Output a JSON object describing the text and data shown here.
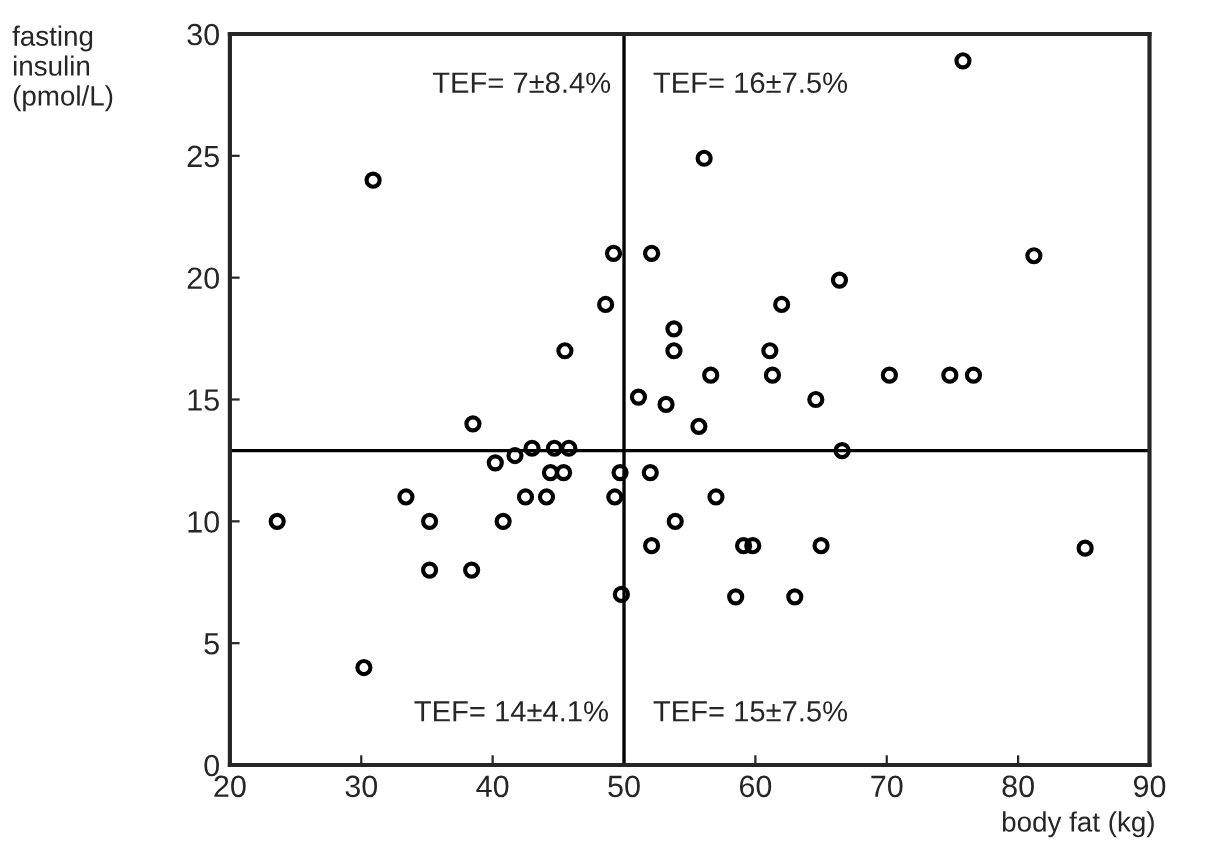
{
  "chart_data": {
    "type": "scatter",
    "ylabel": "fasting\ninsulin\n(pmol/L)",
    "xlabel": "body fat (kg)",
    "x": [
      23.6,
      30.2,
      30.9,
      33.4,
      35.2,
      35.2,
      38.4,
      38.5,
      40.2,
      40.8,
      41.7,
      42.5,
      43,
      44.1,
      44.4,
      44.7,
      45.4,
      45.8,
      45.5,
      48.6,
      49.2,
      49.3,
      49.7,
      49.8,
      51.1,
      52.1,
      52,
      52.1,
      53.2,
      53.8,
      53.8,
      53.9,
      55.7,
      56.1,
      56.6,
      57,
      58.5,
      59.1,
      59.8,
      61.1,
      61.3,
      62,
      63,
      64.6,
      65,
      66.4,
      66.6,
      70.2,
      74.8,
      75.8,
      76.6,
      81.2,
      85.1
    ],
    "values": [
      10,
      4,
      24,
      11,
      10,
      8,
      8,
      14,
      12.4,
      10,
      12.7,
      11,
      13,
      11,
      12,
      13,
      12,
      13,
      17,
      18.9,
      21,
      11,
      12,
      7,
      15.1,
      21,
      12,
      9,
      14.8,
      17.9,
      17,
      10,
      13.9,
      24.9,
      16,
      11,
      6.9,
      9,
      9,
      17,
      16,
      18.9,
      6.9,
      15,
      9,
      19.9,
      12.9,
      16,
      16,
      28.9,
      16,
      20.9,
      8.9
    ],
    "color": "#000000",
    "marker": "circle",
    "xlim": [
      20,
      90
    ],
    "ylim": [
      0,
      30
    ],
    "xticks": [
      20,
      30,
      40,
      50,
      60,
      70,
      80,
      90
    ],
    "yticks": [
      0,
      5,
      10,
      15,
      20,
      25,
      30
    ],
    "grid": false,
    "legend": false,
    "ref_lines": [
      {
        "axis": "x",
        "value": 50,
        "color": "#000000"
      },
      {
        "axis": "y",
        "value": 12.9,
        "color": "#000000"
      }
    ],
    "annotations": [
      "TEF= 7±8.4%",
      "TEF= 16±7.5%",
      "TEF= 14±4.1%",
      "TEF= 15±7.5%"
    ]
  }
}
